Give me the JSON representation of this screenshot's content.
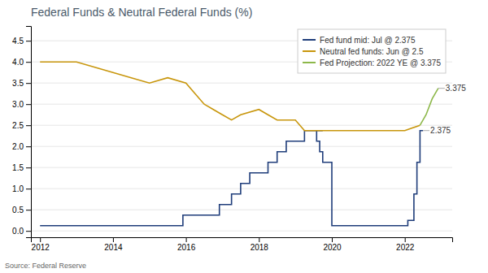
{
  "chart_data": {
    "type": "line",
    "title": "Federal Funds & Neutral Federal Funds (%)",
    "source": "Source: Federal Reserve",
    "series": [
      {
        "name": "Fed fund mid: Jul @ 2.375",
        "type": "step",
        "color": "#1f3d7a",
        "x": [
          2012.0,
          2012.083,
          2012.25,
          2012.5,
          2012.75,
          2013.0,
          2013.25,
          2013.5,
          2013.75,
          2014.0,
          2014.25,
          2014.5,
          2014.75,
          2015.0,
          2015.25,
          2015.5,
          2015.75,
          2015.917,
          2016.0,
          2016.25,
          2016.5,
          2016.75,
          2016.917,
          2017.0,
          2017.25,
          2017.5,
          2017.75,
          2018.0,
          2018.25,
          2018.5,
          2018.75,
          2019.0,
          2019.25,
          2019.5,
          2019.75,
          2019.583,
          2019.667,
          2019.75,
          2020.0,
          2020.25,
          2020.5,
          2020.75,
          2021.0,
          2021.25,
          2021.5,
          2021.75,
          2022.0,
          2022.083,
          2022.25,
          2022.333,
          2022.417,
          2022.5
        ],
        "values": [
          0.125,
          0.125,
          0.125,
          0.125,
          0.125,
          0.125,
          0.125,
          0.125,
          0.125,
          0.125,
          0.125,
          0.125,
          0.125,
          0.125,
          0.125,
          0.125,
          0.125,
          0.375,
          0.375,
          0.375,
          0.375,
          0.375,
          0.625,
          0.625,
          0.875,
          1.125,
          1.375,
          1.375,
          1.625,
          1.875,
          2.125,
          2.125,
          2.375,
          2.375,
          2.375,
          2.125,
          1.875,
          1.625,
          0.125,
          0.125,
          0.125,
          0.125,
          0.125,
          0.125,
          0.125,
          0.125,
          0.125,
          0.25,
          0.875,
          1.625,
          2.375,
          2.375
        ]
      },
      {
        "name": "Neutral fed funds: Jun @ 2.5",
        "type": "line",
        "color": "#c8960c",
        "x": [
          2012.0,
          2013.0,
          2013.0,
          2013.5,
          2013.5,
          2014.0,
          2014.0,
          2014.5,
          2014.5,
          2015.0,
          2015.0,
          2015.5,
          2015.5,
          2016.0,
          2016.0,
          2016.25,
          2016.25,
          2016.5,
          2016.5,
          2016.75,
          2016.75,
          2017.0,
          2017.0,
          2017.25,
          2017.25,
          2017.5,
          2017.5,
          2018.0,
          2018.0,
          2018.25,
          2018.25,
          2018.5,
          2018.5,
          2019.0,
          2019.0,
          2019.25,
          2019.25,
          2019.5,
          2019.5,
          2020.0,
          2020.0,
          2021.0,
          2021.0,
          2021.5,
          2021.5,
          2022.0,
          2022.0,
          2022.417
        ],
        "values": [
          4.0,
          4.0,
          4.0,
          3.875,
          3.875,
          3.75,
          3.75,
          3.625,
          3.625,
          3.5,
          3.5,
          3.625,
          3.625,
          3.5,
          3.5,
          3.25,
          3.25,
          3.0,
          3.0,
          2.875,
          2.875,
          2.75,
          2.75,
          2.625,
          2.625,
          2.75,
          2.75,
          2.875,
          2.875,
          2.75,
          2.75,
          2.625,
          2.625,
          2.625,
          2.625,
          2.375,
          2.375,
          2.375,
          2.375,
          2.375,
          2.375,
          2.375,
          2.375,
          2.375,
          2.375,
          2.375,
          2.375,
          2.5
        ]
      },
      {
        "name": "Fed Projection: 2022 YE @ 3.375",
        "type": "line",
        "color": "#8db84a",
        "x": [
          2022.417,
          2022.583,
          2022.75,
          2022.917
        ],
        "values": [
          2.5,
          2.75,
          3.125,
          3.375
        ]
      }
    ],
    "annotations": [
      {
        "text": "3.375",
        "x": 2022.917,
        "y": 3.375
      },
      {
        "text": "2.375",
        "x": 2022.5,
        "y": 2.375
      }
    ],
    "xlim": [
      2011.75,
      2023.3
    ],
    "ylim": [
      -0.15,
      4.85
    ],
    "xticks": [
      2012,
      2014,
      2016,
      2018,
      2020,
      2022
    ],
    "yticks": [
      {
        "value": 0,
        "label": "0.0"
      },
      0.5,
      {
        "value": 1,
        "label": "1.0"
      },
      1.5,
      {
        "value": 2,
        "label": "2.0"
      },
      2.5,
      {
        "value": 3,
        "label": "3.0"
      },
      3.5,
      {
        "value": 4,
        "label": "4.0"
      },
      4.5
    ],
    "grid": true,
    "legend": "upper right"
  }
}
